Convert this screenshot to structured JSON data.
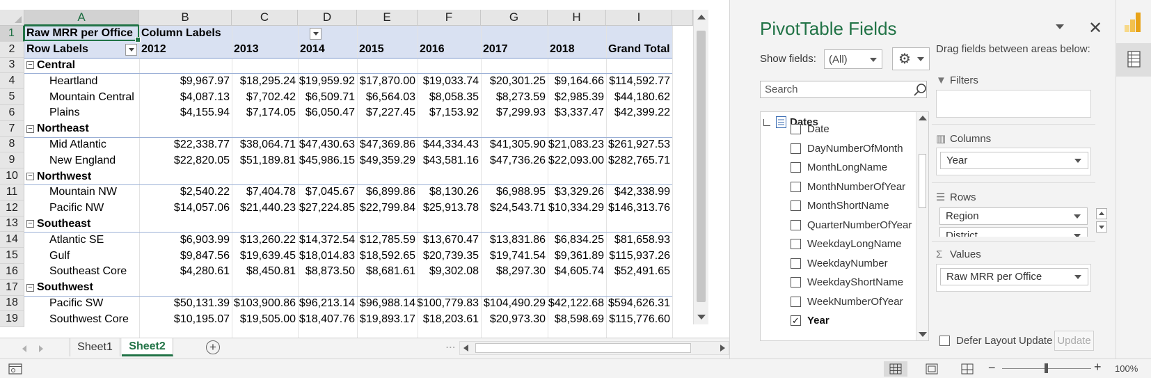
{
  "columns": [
    "A",
    "B",
    "C",
    "D",
    "E",
    "F",
    "G",
    "H",
    "I"
  ],
  "row_numbers": [
    "1",
    "2",
    "3",
    "4",
    "5",
    "6",
    "7",
    "8",
    "9",
    "10",
    "11",
    "12",
    "13",
    "14",
    "15",
    "16",
    "17",
    "18",
    "19"
  ],
  "pivot": {
    "value_label": "Raw MRR per Office",
    "column_labels": "Column Labels",
    "row_labels": "Row Labels",
    "years": [
      "2012",
      "2013",
      "2014",
      "2015",
      "2016",
      "2017",
      "2018",
      "Grand Total"
    ],
    "rows": [
      {
        "type": "group",
        "label": "Central"
      },
      {
        "type": "item",
        "label": "Heartland",
        "values": [
          "$9,967.97",
          "$18,295.24",
          "$19,959.92",
          "$17,870.00",
          "$19,033.74",
          "$20,301.25",
          "$9,164.66",
          "$114,592.77"
        ]
      },
      {
        "type": "item",
        "label": "Mountain Central",
        "values": [
          "$4,087.13",
          "$7,702.42",
          "$6,509.71",
          "$6,564.03",
          "$8,058.35",
          "$8,273.59",
          "$2,985.39",
          "$44,180.62"
        ]
      },
      {
        "type": "item",
        "label": "Plains",
        "values": [
          "$4,155.94",
          "$7,174.05",
          "$6,050.47",
          "$7,227.45",
          "$7,153.92",
          "$7,299.93",
          "$3,337.47",
          "$42,399.22"
        ]
      },
      {
        "type": "group",
        "label": "Northeast"
      },
      {
        "type": "item",
        "label": "Mid Atlantic",
        "values": [
          "$22,338.77",
          "$38,064.71",
          "$47,430.63",
          "$47,369.86",
          "$44,334.43",
          "$41,305.90",
          "$21,083.23",
          "$261,927.53"
        ]
      },
      {
        "type": "item",
        "label": "New England",
        "values": [
          "$22,820.05",
          "$51,189.81",
          "$45,986.15",
          "$49,359.29",
          "$43,581.16",
          "$47,736.26",
          "$22,093.00",
          "$282,765.71"
        ]
      },
      {
        "type": "group",
        "label": "Northwest"
      },
      {
        "type": "item",
        "label": "Mountain NW",
        "values": [
          "$2,540.22",
          "$7,404.78",
          "$7,045.67",
          "$6,899.86",
          "$8,130.26",
          "$6,988.95",
          "$3,329.26",
          "$42,338.99"
        ]
      },
      {
        "type": "item",
        "label": "Pacific NW",
        "values": [
          "$14,057.06",
          "$21,440.23",
          "$27,224.85",
          "$22,799.84",
          "$25,913.78",
          "$24,543.71",
          "$10,334.29",
          "$146,313.76"
        ]
      },
      {
        "type": "group",
        "label": "Southeast"
      },
      {
        "type": "item",
        "label": "Atlantic SE",
        "values": [
          "$6,903.99",
          "$13,260.22",
          "$14,372.54",
          "$12,785.59",
          "$13,670.47",
          "$13,831.86",
          "$6,834.25",
          "$81,658.93"
        ]
      },
      {
        "type": "item",
        "label": "Gulf",
        "values": [
          "$9,847.56",
          "$19,639.45",
          "$18,014.83",
          "$18,592.65",
          "$20,739.35",
          "$19,741.54",
          "$9,361.89",
          "$115,937.26"
        ]
      },
      {
        "type": "item",
        "label": "Southeast Core",
        "values": [
          "$4,280.61",
          "$8,450.81",
          "$8,873.50",
          "$8,681.61",
          "$9,302.08",
          "$8,297.30",
          "$4,605.74",
          "$52,491.65"
        ]
      },
      {
        "type": "group",
        "label": "Southwest"
      },
      {
        "type": "item",
        "label": "Pacific SW",
        "values": [
          "$50,131.39",
          "$103,900.86",
          "$96,213.14",
          "$96,988.14",
          "$100,779.83",
          "$104,490.29",
          "$42,122.68",
          "$594,626.31"
        ]
      },
      {
        "type": "item",
        "label": "Southwest Core",
        "values": [
          "$10,195.07",
          "$19,505.00",
          "$18,407.76",
          "$19,893.17",
          "$18,203.61",
          "$20,973.30",
          "$8,598.69",
          "$115,776.60"
        ]
      }
    ]
  },
  "sheet_tabs": [
    {
      "label": "Sheet1",
      "active": false
    },
    {
      "label": "Sheet2",
      "active": true
    }
  ],
  "panel": {
    "title": "PivotTable Fields",
    "show_fields_label": "Show fields:",
    "show_fields_value": "(All)",
    "search_placeholder": "Search",
    "drag_hint": "Drag fields between areas below:",
    "table_name": "Dates",
    "fields": [
      {
        "label": "Date",
        "checked": false
      },
      {
        "label": "DayNumberOfMonth",
        "checked": false
      },
      {
        "label": "MonthLongName",
        "checked": false
      },
      {
        "label": "MonthNumberOfYear",
        "checked": false
      },
      {
        "label": "MonthShortName",
        "checked": false
      },
      {
        "label": "QuarterNumberOfYear",
        "checked": false
      },
      {
        "label": "WeekdayLongName",
        "checked": false
      },
      {
        "label": "WeekdayNumber",
        "checked": false
      },
      {
        "label": "WeekdayShortName",
        "checked": false
      },
      {
        "label": "WeekNumberOfYear",
        "checked": false
      },
      {
        "label": "Year",
        "checked": true
      }
    ],
    "filters_label": "Filters",
    "columns_label": "Columns",
    "columns_value": "Year",
    "rows_label": "Rows",
    "rows_values": [
      "Region",
      "District"
    ],
    "values_label": "Values",
    "values_value": "Raw MRR per Office",
    "defer_label": "Defer Layout Update",
    "update_label": "Update"
  },
  "status": {
    "zoom": "100%",
    "zoom_fraction": 0.5
  },
  "colors": {
    "excel_green": "#217346",
    "pivot_header_band": "#d9e1f2"
  }
}
